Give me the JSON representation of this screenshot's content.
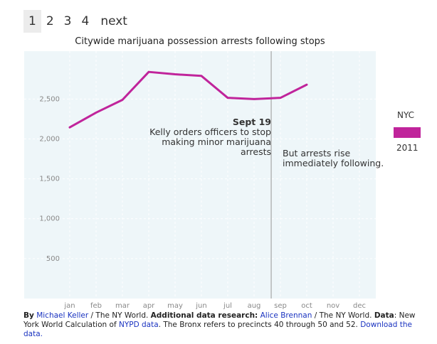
{
  "pagination": {
    "pages": [
      "1",
      "2",
      "3",
      "4"
    ],
    "next_label": "next",
    "active": "1"
  },
  "chart_data": {
    "type": "line",
    "title": "Citywide marijuana possession arrests following stops",
    "categories": [
      "jan",
      "feb",
      "mar",
      "apr",
      "may",
      "jun",
      "jul",
      "aug",
      "sep",
      "oct",
      "nov",
      "dec"
    ],
    "series": [
      {
        "name": "NYC",
        "year": "2011",
        "color": "#c0249b",
        "values": [
          2145,
          2330,
          2490,
          2840,
          2810,
          2790,
          2515,
          2500,
          2515,
          2680,
          null,
          null
        ]
      }
    ],
    "yticks": [
      500,
      1000,
      1500,
      2000,
      2500
    ],
    "ytick_labels": [
      "500",
      "1,000",
      "1,500",
      "2,000",
      "2,500"
    ],
    "ylim": [
      0,
      3100
    ],
    "grid": true,
    "legend": {
      "region": "NYC",
      "year": "2011",
      "placement": "right"
    },
    "event_line": {
      "x": 8.65
    },
    "annotations": {
      "event_date": "Sept 19",
      "event_text": [
        "Kelly orders officers to stop",
        "making minor marijuana",
        "arrests"
      ],
      "after_text": [
        "But arrests rise",
        "immediately following."
      ]
    }
  },
  "footer": {
    "by_label": "By",
    "author": "Michael Keller",
    "author_org": " / The NY World. ",
    "research_label": "Additional data research:",
    "researcher": "Alice Brennan",
    "research_org": " / The NY World. ",
    "data_label": "Data",
    "data_text": ": New York World Calculation of ",
    "data_link": "NYPD data",
    "note": ". The Bronx refers to precincts 40 through 50 and 52. ",
    "download_link": "Download the data."
  }
}
